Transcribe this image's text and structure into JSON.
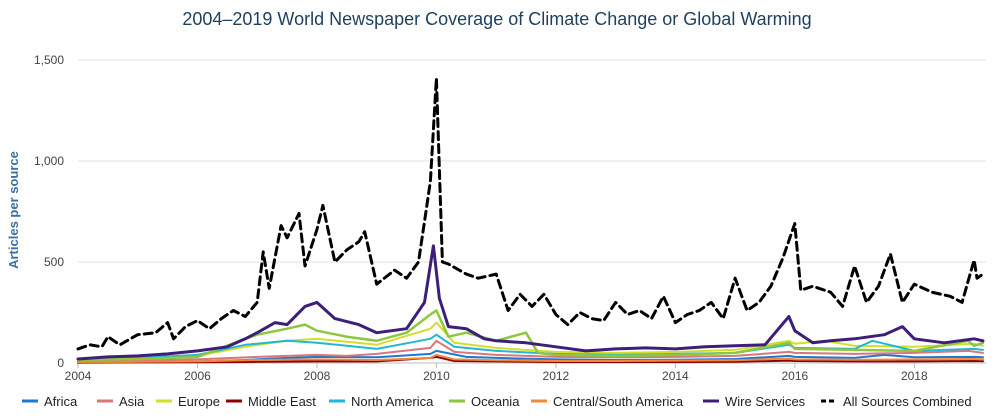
{
  "chart_data": {
    "type": "line",
    "title": "2004–2019 World Newspaper Coverage of Climate Change or Global Warming",
    "xlabel": "",
    "ylabel": "Articles per source",
    "xlim": [
      2004,
      2019.2
    ],
    "ylim": [
      0,
      1500
    ],
    "x_ticks": [
      2004,
      2006,
      2008,
      2010,
      2012,
      2014,
      2016,
      2018
    ],
    "x_tick_labels": [
      "2004",
      "2006",
      "2008",
      "2010",
      "2012",
      "2014",
      "2016",
      "2018"
    ],
    "y_ticks": [
      0,
      500,
      1000,
      1500
    ],
    "y_tick_labels": [
      "0",
      "500",
      "1,000",
      "1,500"
    ],
    "grid": "horizontal",
    "legend_position": "bottom",
    "series": [
      {
        "name": "Africa",
        "color": "#1f77d4",
        "dash": false,
        "width": 2,
        "points": [
          [
            2004,
            5
          ],
          [
            2005,
            6
          ],
          [
            2006,
            8
          ],
          [
            2006.8,
            15
          ],
          [
            2007.5,
            25
          ],
          [
            2008,
            30
          ],
          [
            2009,
            28
          ],
          [
            2009.9,
            45
          ],
          [
            2010,
            60
          ],
          [
            2010.5,
            30
          ],
          [
            2011,
            25
          ],
          [
            2012,
            18
          ],
          [
            2013,
            15
          ],
          [
            2014,
            16
          ],
          [
            2015,
            20
          ],
          [
            2015.9,
            35
          ],
          [
            2016,
            30
          ],
          [
            2017,
            25
          ],
          [
            2017.5,
            40
          ],
          [
            2018,
            28
          ],
          [
            2019,
            30
          ],
          [
            2019.15,
            28
          ]
        ]
      },
      {
        "name": "Asia",
        "color": "#d9777a",
        "dash": false,
        "width": 2,
        "points": [
          [
            2004,
            10
          ],
          [
            2005,
            12
          ],
          [
            2006,
            18
          ],
          [
            2007,
            30
          ],
          [
            2008,
            40
          ],
          [
            2008.5,
            35
          ],
          [
            2009,
            45
          ],
          [
            2009.9,
            75
          ],
          [
            2010,
            110
          ],
          [
            2010.3,
            55
          ],
          [
            2011,
            40
          ],
          [
            2012,
            30
          ],
          [
            2013,
            28
          ],
          [
            2014,
            30
          ],
          [
            2015,
            35
          ],
          [
            2015.9,
            55
          ],
          [
            2016,
            50
          ],
          [
            2017,
            45
          ],
          [
            2018,
            50
          ],
          [
            2018.9,
            60
          ],
          [
            2019.15,
            50
          ]
        ]
      },
      {
        "name": "Europe",
        "color": "#d4de2a",
        "dash": false,
        "width": 2,
        "points": [
          [
            2004,
            15
          ],
          [
            2005,
            20
          ],
          [
            2006,
            35
          ],
          [
            2006.8,
            80
          ],
          [
            2007.5,
            110
          ],
          [
            2008,
            120
          ],
          [
            2009,
            90
          ],
          [
            2009.9,
            170
          ],
          [
            2010,
            200
          ],
          [
            2010.3,
            100
          ],
          [
            2011,
            75
          ],
          [
            2012,
            55
          ],
          [
            2013,
            50
          ],
          [
            2014,
            55
          ],
          [
            2015,
            65
          ],
          [
            2015.9,
            110
          ],
          [
            2016,
            95
          ],
          [
            2016.5,
            110
          ],
          [
            2017,
            85
          ],
          [
            2018,
            80
          ],
          [
            2019,
            95
          ],
          [
            2019.15,
            85
          ]
        ]
      },
      {
        "name": "Middle East",
        "color": "#8b0000",
        "dash": false,
        "width": 2,
        "points": [
          [
            2004,
            2
          ],
          [
            2005,
            3
          ],
          [
            2006,
            4
          ],
          [
            2007,
            6
          ],
          [
            2008,
            8
          ],
          [
            2009,
            8
          ],
          [
            2009.9,
            25
          ],
          [
            2010,
            30
          ],
          [
            2010.3,
            10
          ],
          [
            2011,
            8
          ],
          [
            2012,
            5
          ],
          [
            2013,
            5
          ],
          [
            2014,
            5
          ],
          [
            2015,
            6
          ],
          [
            2015.9,
            12
          ],
          [
            2016,
            10
          ],
          [
            2017,
            8
          ],
          [
            2018,
            8
          ],
          [
            2019,
            10
          ],
          [
            2019.15,
            9
          ]
        ]
      },
      {
        "name": "North America",
        "color": "#22b7d6",
        "dash": false,
        "width": 2,
        "points": [
          [
            2004,
            20
          ],
          [
            2005,
            25
          ],
          [
            2006,
            40
          ],
          [
            2006.8,
            90
          ],
          [
            2007.5,
            110
          ],
          [
            2008,
            100
          ],
          [
            2008.5,
            85
          ],
          [
            2009,
            70
          ],
          [
            2009.9,
            120
          ],
          [
            2010,
            140
          ],
          [
            2010.3,
            80
          ],
          [
            2011,
            60
          ],
          [
            2012,
            45
          ],
          [
            2013,
            40
          ],
          [
            2014,
            45
          ],
          [
            2015,
            50
          ],
          [
            2015.9,
            90
          ],
          [
            2016,
            75
          ],
          [
            2017,
            70
          ],
          [
            2017.3,
            110
          ],
          [
            2018,
            60
          ],
          [
            2019,
            70
          ],
          [
            2019.15,
            65
          ]
        ]
      },
      {
        "name": "Oceania",
        "color": "#8dc63f",
        "dash": false,
        "width": 2.5,
        "points": [
          [
            2004,
            15
          ],
          [
            2005,
            20
          ],
          [
            2006,
            30
          ],
          [
            2006.8,
            120
          ],
          [
            2007,
            140
          ],
          [
            2007.5,
            170
          ],
          [
            2007.8,
            190
          ],
          [
            2008,
            160
          ],
          [
            2008.5,
            130
          ],
          [
            2009,
            110
          ],
          [
            2009.5,
            150
          ],
          [
            2009.9,
            240
          ],
          [
            2010,
            260
          ],
          [
            2010.2,
            130
          ],
          [
            2010.5,
            150
          ],
          [
            2011,
            110
          ],
          [
            2011.5,
            150
          ],
          [
            2011.7,
            50
          ],
          [
            2012,
            40
          ],
          [
            2013,
            35
          ],
          [
            2014,
            40
          ],
          [
            2015,
            50
          ],
          [
            2015.9,
            100
          ],
          [
            2016,
            70
          ],
          [
            2017,
            65
          ],
          [
            2018,
            60
          ],
          [
            2018.9,
            110
          ],
          [
            2019,
            85
          ],
          [
            2019.15,
            100
          ]
        ]
      },
      {
        "name": "Central/South America",
        "color": "#f08a3a",
        "dash": false,
        "width": 2,
        "points": [
          [
            2004,
            5
          ],
          [
            2005,
            6
          ],
          [
            2006,
            8
          ],
          [
            2007,
            15
          ],
          [
            2008,
            18
          ],
          [
            2009,
            15
          ],
          [
            2009.9,
            25
          ],
          [
            2010,
            40
          ],
          [
            2010.3,
            18
          ],
          [
            2011,
            14
          ],
          [
            2012,
            10
          ],
          [
            2013,
            10
          ],
          [
            2014,
            12
          ],
          [
            2015,
            14
          ],
          [
            2015.9,
            22
          ],
          [
            2016,
            18
          ],
          [
            2017,
            16
          ],
          [
            2018,
            18
          ],
          [
            2019,
            20
          ],
          [
            2019.15,
            18
          ]
        ]
      },
      {
        "name": "Wire Services",
        "color": "#3d1f7a",
        "dash": false,
        "width": 3,
        "points": [
          [
            2004,
            20
          ],
          [
            2004.5,
            30
          ],
          [
            2005,
            35
          ],
          [
            2005.5,
            45
          ],
          [
            2006,
            60
          ],
          [
            2006.5,
            80
          ],
          [
            2006.8,
            120
          ],
          [
            2007,
            150
          ],
          [
            2007.3,
            200
          ],
          [
            2007.5,
            190
          ],
          [
            2007.8,
            280
          ],
          [
            2008,
            300
          ],
          [
            2008.3,
            220
          ],
          [
            2008.7,
            190
          ],
          [
            2009,
            150
          ],
          [
            2009.5,
            170
          ],
          [
            2009.8,
            300
          ],
          [
            2009.95,
            580
          ],
          [
            2010.05,
            320
          ],
          [
            2010.2,
            180
          ],
          [
            2010.5,
            170
          ],
          [
            2010.8,
            120
          ],
          [
            2011,
            110
          ],
          [
            2011.5,
            100
          ],
          [
            2012,
            80
          ],
          [
            2012.5,
            60
          ],
          [
            2013,
            70
          ],
          [
            2013.5,
            75
          ],
          [
            2014,
            70
          ],
          [
            2014.5,
            80
          ],
          [
            2015,
            85
          ],
          [
            2015.5,
            90
          ],
          [
            2015.9,
            230
          ],
          [
            2016,
            160
          ],
          [
            2016.3,
            100
          ],
          [
            2016.6,
            110
          ],
          [
            2017,
            120
          ],
          [
            2017.5,
            140
          ],
          [
            2017.8,
            180
          ],
          [
            2018,
            120
          ],
          [
            2018.5,
            100
          ],
          [
            2019,
            120
          ],
          [
            2019.15,
            110
          ]
        ]
      },
      {
        "name": "All Sources Combined",
        "color": "#000000",
        "dash": true,
        "width": 3,
        "points": [
          [
            2004,
            70
          ],
          [
            2004.2,
            90
          ],
          [
            2004.4,
            80
          ],
          [
            2004.5,
            130
          ],
          [
            2004.7,
            90
          ],
          [
            2005,
            140
          ],
          [
            2005.3,
            150
          ],
          [
            2005.5,
            200
          ],
          [
            2005.6,
            120
          ],
          [
            2005.8,
            180
          ],
          [
            2006,
            210
          ],
          [
            2006.2,
            170
          ],
          [
            2006.4,
            220
          ],
          [
            2006.6,
            260
          ],
          [
            2006.8,
            230
          ],
          [
            2007,
            300
          ],
          [
            2007.1,
            550
          ],
          [
            2007.2,
            370
          ],
          [
            2007.4,
            680
          ],
          [
            2007.5,
            620
          ],
          [
            2007.7,
            740
          ],
          [
            2007.8,
            480
          ],
          [
            2008,
            660
          ],
          [
            2008.1,
            780
          ],
          [
            2008.3,
            500
          ],
          [
            2008.5,
            560
          ],
          [
            2008.7,
            600
          ],
          [
            2008.8,
            650
          ],
          [
            2009,
            390
          ],
          [
            2009.3,
            460
          ],
          [
            2009.5,
            420
          ],
          [
            2009.7,
            500
          ],
          [
            2009.8,
            700
          ],
          [
            2009.9,
            900
          ],
          [
            2010,
            1410
          ],
          [
            2010.1,
            500
          ],
          [
            2010.2,
            490
          ],
          [
            2010.5,
            440
          ],
          [
            2010.7,
            420
          ],
          [
            2011,
            440
          ],
          [
            2011.2,
            260
          ],
          [
            2011.4,
            340
          ],
          [
            2011.6,
            280
          ],
          [
            2011.8,
            340
          ],
          [
            2012,
            240
          ],
          [
            2012.2,
            190
          ],
          [
            2012.4,
            250
          ],
          [
            2012.6,
            220
          ],
          [
            2012.8,
            210
          ],
          [
            2013,
            300
          ],
          [
            2013.2,
            240
          ],
          [
            2013.4,
            260
          ],
          [
            2013.6,
            220
          ],
          [
            2013.8,
            330
          ],
          [
            2014,
            200
          ],
          [
            2014.2,
            240
          ],
          [
            2014.4,
            260
          ],
          [
            2014.6,
            300
          ],
          [
            2014.8,
            220
          ],
          [
            2015,
            420
          ],
          [
            2015.2,
            260
          ],
          [
            2015.4,
            300
          ],
          [
            2015.6,
            380
          ],
          [
            2015.8,
            520
          ],
          [
            2016,
            690
          ],
          [
            2016.1,
            360
          ],
          [
            2016.3,
            380
          ],
          [
            2016.6,
            350
          ],
          [
            2016.8,
            280
          ],
          [
            2017,
            480
          ],
          [
            2017.2,
            300
          ],
          [
            2017.4,
            380
          ],
          [
            2017.6,
            540
          ],
          [
            2017.8,
            300
          ],
          [
            2018,
            390
          ],
          [
            2018.3,
            350
          ],
          [
            2018.6,
            330
          ],
          [
            2018.8,
            300
          ],
          [
            2019,
            510
          ],
          [
            2019.05,
            420
          ],
          [
            2019.15,
            440
          ]
        ]
      }
    ]
  }
}
